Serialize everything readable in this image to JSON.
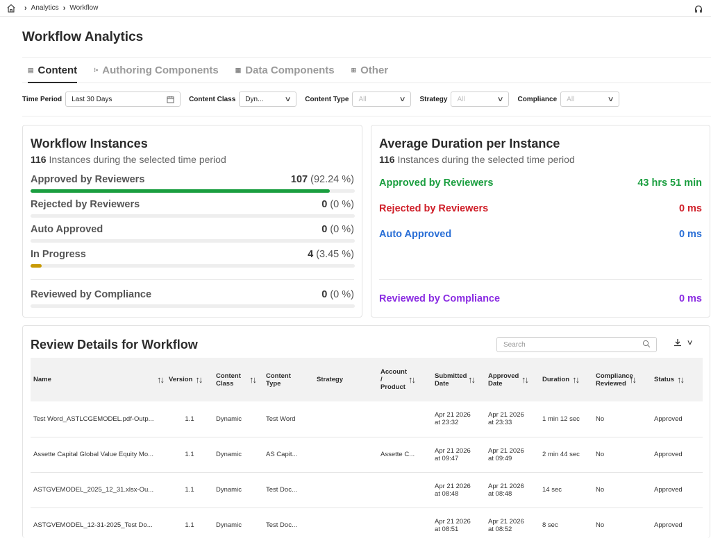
{
  "breadcrumb": {
    "items": [
      "Analytics",
      "Workflow"
    ]
  },
  "page_title": "Workflow Analytics",
  "tabs": [
    {
      "label": "Content",
      "icon": "content-icon"
    },
    {
      "label": "Authoring Components",
      "icon": "authoring-icon"
    },
    {
      "label": "Data Components",
      "icon": "data-components-icon"
    },
    {
      "label": "Other",
      "icon": "other-icon"
    }
  ],
  "filters": {
    "time_period": {
      "label": "Time Period",
      "value": "Last 30 Days"
    },
    "content_class": {
      "label": "Content Class",
      "value": "Dyn..."
    },
    "content_type": {
      "label": "Content Type",
      "value": "All"
    },
    "strategy": {
      "label": "Strategy",
      "value": "All"
    },
    "compliance": {
      "label": "Compliance",
      "value": "All"
    }
  },
  "instances_card": {
    "title": "Workflow Instances",
    "count": "116",
    "count_text": " Instances during the selected time period",
    "rows": [
      {
        "label": "Approved by Reviewers",
        "count": "107",
        "pct": "(92.24 %)",
        "fraction": 0.9224,
        "color": "#1a9e3f"
      },
      {
        "label": "Rejected by Reviewers",
        "count": "0",
        "pct": "(0 %)",
        "fraction": 0,
        "color": "#d22"
      },
      {
        "label": "Auto Approved",
        "count": "0",
        "pct": "(0 %)",
        "fraction": 0,
        "color": "#2a6fd6"
      },
      {
        "label": "In Progress",
        "count": "4",
        "pct": "(3.45 %)",
        "fraction": 0.0345,
        "color": "#c89a06"
      },
      {
        "label": "Reviewed by Compliance",
        "count": "0",
        "pct": "(0 %)",
        "fraction": 0,
        "color": "#8a2be2"
      }
    ]
  },
  "duration_card": {
    "title": "Average Duration per Instance",
    "count": "116",
    "count_text": " Instances during the selected time period",
    "rows": [
      {
        "label": "Approved by Reviewers",
        "value": "43 hrs 51 min",
        "color": "#1a9e3f"
      },
      {
        "label": "Rejected by Reviewers",
        "value": "0 ms",
        "color": "#d0202a"
      },
      {
        "label": "Auto Approved",
        "value": "0 ms",
        "color": "#2a6fd6"
      },
      {
        "label": "Reviewed by Compliance",
        "value": "0 ms",
        "color": "#8a2be2"
      }
    ]
  },
  "review_table": {
    "title": "Review Details for Workflow",
    "search_placeholder": "Search",
    "columns": [
      "Name",
      "Version",
      "Content Class",
      "Content Type",
      "Strategy",
      "Account / Product",
      "Submitted Date",
      "Approved Date",
      "Duration",
      "Compliance Reviewed",
      "Status"
    ],
    "rows": [
      [
        "Test Word_ASTLCGEMODEL.pdf-Outp...",
        "1.1",
        "Dynamic",
        "Test Word",
        "",
        "",
        "Apr 21 2026 at 23:32",
        "Apr 21 2026 at 23:33",
        "1 min 12 sec",
        "No",
        "Approved"
      ],
      [
        "Assette Capital Global Value Equity Mo...",
        "1.1",
        "Dynamic",
        "AS Capit...",
        "",
        "Assette C...",
        "Apr 21 2026 at 09:47",
        "Apr 21 2026 at 09:49",
        "2 min 44 sec",
        "No",
        "Approved"
      ],
      [
        "ASTGVEMODEL_2025_12_31.xlsx-Ou...",
        "1.1",
        "Dynamic",
        "Test Doc...",
        "",
        "",
        "Apr 21 2026 at 08:48",
        "Apr 21 2026 at 08:48",
        "14 sec",
        "No",
        "Approved"
      ],
      [
        "ASTGVEMODEL_12-31-2025_Test Do...",
        "1.1",
        "Dynamic",
        "Test Doc...",
        "",
        "",
        "Apr 21 2026 at 08:51",
        "Apr 21 2026 at 08:52",
        "8 sec",
        "No",
        "Approved"
      ]
    ]
  }
}
